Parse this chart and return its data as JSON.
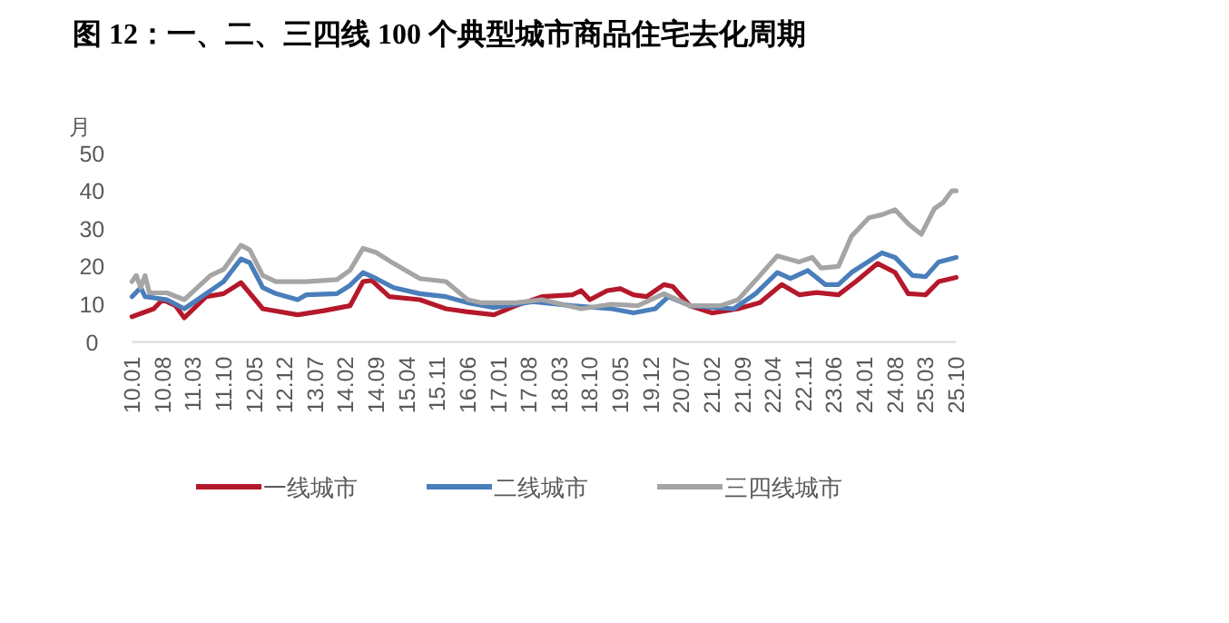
{
  "chart_data": {
    "type": "line",
    "title": "图 12：一、二、三四线 100 个典型城市商品住宅去化周期",
    "ylabel": "月",
    "xlim": [
      "2010-01",
      "2025-10"
    ],
    "ylim": [
      0,
      50
    ],
    "yticks": [
      0,
      10,
      20,
      30,
      40,
      50
    ],
    "xticks": [
      {
        "value": "2010-01",
        "label": "10.01"
      },
      {
        "value": "2010-08",
        "label": "10.08"
      },
      {
        "value": "2011-03",
        "label": "11.03"
      },
      {
        "value": "2011-10",
        "label": "11.10"
      },
      {
        "value": "2012-05",
        "label": "12.05"
      },
      {
        "value": "2012-12",
        "label": "12.12"
      },
      {
        "value": "2013-07",
        "label": "13.07"
      },
      {
        "value": "2014-02",
        "label": "14.02"
      },
      {
        "value": "2014-09",
        "label": "14.09"
      },
      {
        "value": "2015-04",
        "label": "15.04"
      },
      {
        "value": "2015-11",
        "label": "15.11"
      },
      {
        "value": "2016-06",
        "label": "16.06"
      },
      {
        "value": "2017-01",
        "label": "17.01"
      },
      {
        "value": "2017-08",
        "label": "17.08"
      },
      {
        "value": "2018-03",
        "label": "18.03"
      },
      {
        "value": "2018-10",
        "label": "18.10"
      },
      {
        "value": "2019-05",
        "label": "19.05"
      },
      {
        "value": "2019-12",
        "label": "19.12"
      },
      {
        "value": "2020-07",
        "label": "20.07"
      },
      {
        "value": "2021-02",
        "label": "21.02"
      },
      {
        "value": "2021-09",
        "label": "21.09"
      },
      {
        "value": "2022-04",
        "label": "22.04"
      },
      {
        "value": "2022-11",
        "label": "22.11"
      },
      {
        "value": "2023-06",
        "label": "23.06"
      },
      {
        "value": "2024-01",
        "label": "24.01"
      },
      {
        "value": "2024-08",
        "label": "24.08"
      },
      {
        "value": "2025-03",
        "label": "25.03"
      },
      {
        "value": "2025-10",
        "label": "25.10"
      }
    ],
    "grid": false,
    "legend": "bottom",
    "marker": "none",
    "line_style": "solid",
    "series": [
      {
        "name": "一线城市",
        "color": "#b5182b",
        "x": [
          "2010-01",
          "2010-06",
          "2010-08",
          "2010-11",
          "2011-01",
          "2011-06",
          "2011-10",
          "2012-02",
          "2012-07",
          "2013-03",
          "2013-09",
          "2014-03",
          "2014-06",
          "2014-08",
          "2014-12",
          "2015-07",
          "2016-01",
          "2016-06",
          "2016-12",
          "2017-05",
          "2017-11",
          "2018-06",
          "2018-08",
          "2018-10",
          "2019-02",
          "2019-05",
          "2019-08",
          "2019-11",
          "2020-03",
          "2020-05",
          "2020-09",
          "2021-02",
          "2021-08",
          "2022-01",
          "2022-06",
          "2022-10",
          "2023-02",
          "2023-07",
          "2023-11",
          "2024-04",
          "2024-08",
          "2024-11",
          "2025-03",
          "2025-06",
          "2025-10"
        ],
        "values": [
          6.7,
          8.8,
          11.2,
          9.6,
          6.4,
          12,
          12.8,
          15.7,
          8.8,
          7.2,
          8.3,
          9.6,
          16,
          16.3,
          12,
          11.2,
          8.8,
          8,
          7.2,
          9.6,
          12,
          12.5,
          13.6,
          11.2,
          13.6,
          14.1,
          12.5,
          12,
          15.2,
          14.7,
          9.6,
          7.7,
          8.8,
          10.4,
          15.2,
          12.5,
          13.1,
          12.5,
          16,
          20.8,
          18.4,
          12.8,
          12.5,
          16,
          17.1
        ]
      },
      {
        "name": "二线城市",
        "color": "#4a7ebb",
        "x": [
          "2010-01",
          "2010-03",
          "2010-04",
          "2010-09",
          "2011-01",
          "2011-06",
          "2011-10",
          "2012-02",
          "2012-04",
          "2012-07",
          "2012-10",
          "2013-03",
          "2013-05",
          "2013-12",
          "2014-03",
          "2014-06",
          "2014-09",
          "2015-01",
          "2015-07",
          "2016-01",
          "2016-06",
          "2016-12",
          "2017-09",
          "2018-06",
          "2019-03",
          "2019-08",
          "2020-01",
          "2020-04",
          "2020-09",
          "2021-07",
          "2021-12",
          "2022-05",
          "2022-08",
          "2022-12",
          "2023-04",
          "2023-07",
          "2023-10",
          "2024-05",
          "2024-08",
          "2024-12",
          "2025-03",
          "2025-06",
          "2025-10"
        ],
        "values": [
          12,
          14.4,
          12,
          11.2,
          8.8,
          12.8,
          16,
          22,
          21,
          14.4,
          12.8,
          11.2,
          12.5,
          12.8,
          15,
          18.4,
          16.8,
          14.4,
          12.8,
          12,
          10.4,
          9.1,
          10.7,
          9.6,
          8.8,
          7.7,
          8.8,
          12,
          9.6,
          8.8,
          12.8,
          18.4,
          16.8,
          18.9,
          15.2,
          15.2,
          18.4,
          23.6,
          22.4,
          17.6,
          17.3,
          21.2,
          22.4
        ]
      },
      {
        "name": "三四线城市",
        "color": "#a5a5a5",
        "x": [
          "2010-01",
          "2010-02",
          "2010-03",
          "2010-04",
          "2010-05",
          "2010-09",
          "2011-01",
          "2011-04",
          "2011-07",
          "2011-10",
          "2012-02",
          "2012-04",
          "2012-07",
          "2012-10",
          "2013-05",
          "2013-12",
          "2014-03",
          "2014-06",
          "2014-09",
          "2015-01",
          "2015-07",
          "2016-01",
          "2016-06",
          "2016-09",
          "2017-05",
          "2017-11",
          "2018-08",
          "2019-03",
          "2019-09",
          "2020-03",
          "2020-09",
          "2021-04",
          "2021-08",
          "2022-01",
          "2022-05",
          "2022-10",
          "2023-01",
          "2023-03",
          "2023-07",
          "2023-10",
          "2024-02",
          "2024-05",
          "2024-08",
          "2024-11",
          "2025-02",
          "2025-05",
          "2025-07",
          "2025-09",
          "2025-10"
        ],
        "values": [
          16,
          17.6,
          14.4,
          17.6,
          13,
          13,
          11.2,
          14.4,
          17.6,
          19.2,
          25.6,
          24.4,
          17.6,
          16,
          16,
          16.5,
          19,
          24.8,
          23.7,
          20.8,
          16.8,
          16,
          11.2,
          10.4,
          10.4,
          11.2,
          8.8,
          10,
          9.6,
          12.8,
          9.6,
          9.6,
          11.2,
          17.6,
          22.8,
          21.2,
          22.4,
          19.6,
          20,
          28,
          32.9,
          33.7,
          35,
          31.3,
          28.5,
          35.3,
          36.9,
          40,
          40
        ]
      }
    ]
  }
}
